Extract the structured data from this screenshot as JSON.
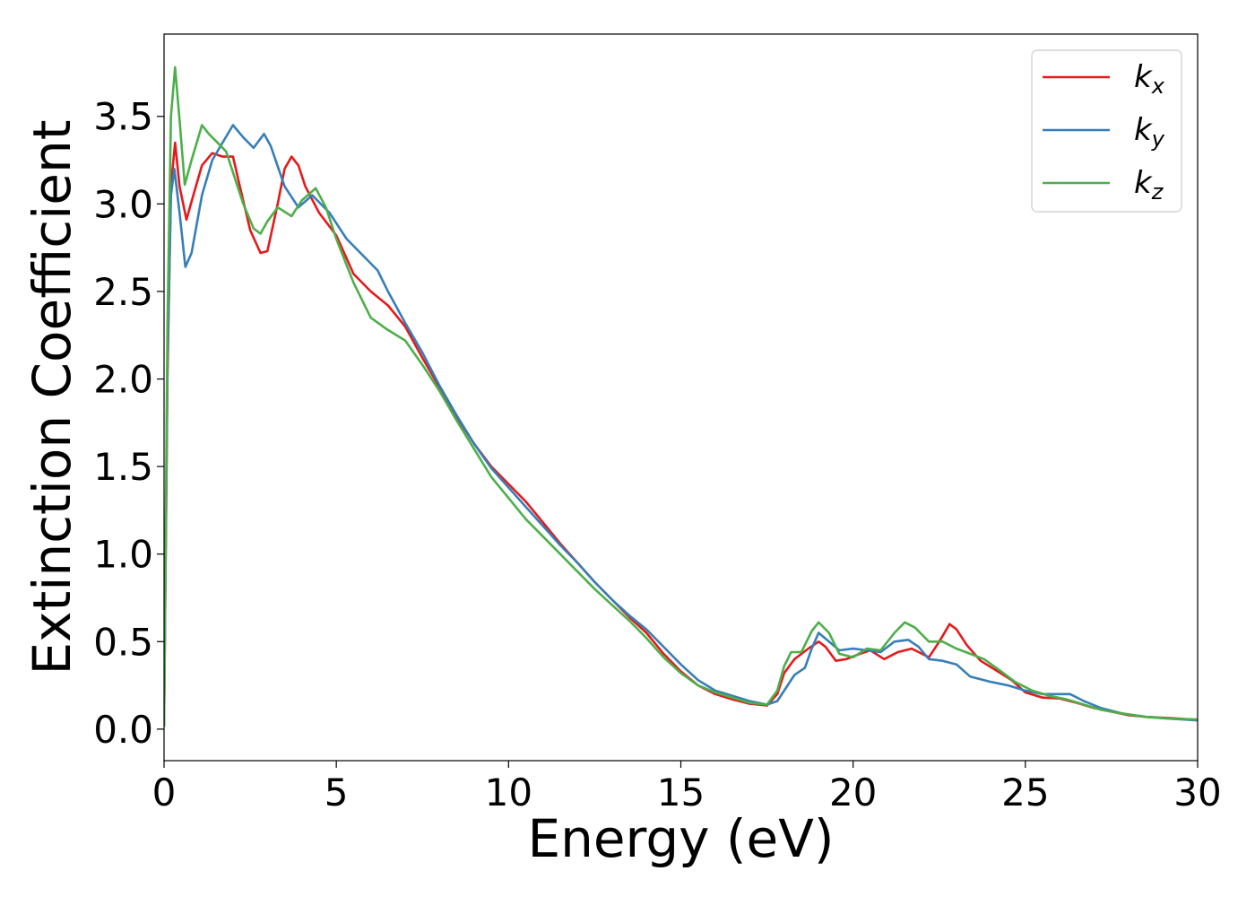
{
  "chart_data": {
    "type": "line",
    "title": "",
    "xlabel": "Energy (eV)",
    "ylabel": "Extinction Coefficient",
    "xlim": [
      0,
      30
    ],
    "ylim": [
      -0.18,
      3.97
    ],
    "xticks": [
      0,
      5,
      10,
      15,
      20,
      25,
      30
    ],
    "xtick_labels": [
      "0",
      "5",
      "10",
      "15",
      "20",
      "25",
      "30"
    ],
    "yticks": [
      0.0,
      0.5,
      1.0,
      1.5,
      2.0,
      2.5,
      3.0,
      3.5
    ],
    "ytick_labels": [
      "0.0",
      "0.5",
      "1.0",
      "1.5",
      "2.0",
      "2.5",
      "3.0",
      "3.5"
    ],
    "grid": false,
    "legend_position": "top-right",
    "series": [
      {
        "name": "kx",
        "legend_main": "k",
        "legend_sub": "x",
        "color": "#e41a1c",
        "points": [
          [
            0,
            0.02
          ],
          [
            0.1,
            2.0
          ],
          [
            0.2,
            3.1
          ],
          [
            0.32,
            3.35
          ],
          [
            0.45,
            3.1
          ],
          [
            0.65,
            2.91
          ],
          [
            0.85,
            3.05
          ],
          [
            1.1,
            3.22
          ],
          [
            1.4,
            3.29
          ],
          [
            1.7,
            3.27
          ],
          [
            2.0,
            3.27
          ],
          [
            2.2,
            3.1
          ],
          [
            2.5,
            2.85
          ],
          [
            2.8,
            2.72
          ],
          [
            3.0,
            2.73
          ],
          [
            3.3,
            3.0
          ],
          [
            3.5,
            3.2
          ],
          [
            3.7,
            3.27
          ],
          [
            3.9,
            3.22
          ],
          [
            4.1,
            3.1
          ],
          [
            4.5,
            2.95
          ],
          [
            5.0,
            2.82
          ],
          [
            5.5,
            2.6
          ],
          [
            6.0,
            2.5
          ],
          [
            6.5,
            2.42
          ],
          [
            7.0,
            2.3
          ],
          [
            7.5,
            2.12
          ],
          [
            8.0,
            1.95
          ],
          [
            8.5,
            1.78
          ],
          [
            9.0,
            1.63
          ],
          [
            9.5,
            1.5
          ],
          [
            10.0,
            1.4
          ],
          [
            10.5,
            1.3
          ],
          [
            11.0,
            1.18
          ],
          [
            11.5,
            1.06
          ],
          [
            12.0,
            0.95
          ],
          [
            12.5,
            0.84
          ],
          [
            13.0,
            0.74
          ],
          [
            13.5,
            0.64
          ],
          [
            14.0,
            0.55
          ],
          [
            14.5,
            0.43
          ],
          [
            15.0,
            0.33
          ],
          [
            15.5,
            0.25
          ],
          [
            16.0,
            0.2
          ],
          [
            16.5,
            0.17
          ],
          [
            17.0,
            0.145
          ],
          [
            17.5,
            0.135
          ],
          [
            17.8,
            0.2
          ],
          [
            18.0,
            0.32
          ],
          [
            18.3,
            0.4
          ],
          [
            18.7,
            0.46
          ],
          [
            19.0,
            0.5
          ],
          [
            19.2,
            0.47
          ],
          [
            19.5,
            0.39
          ],
          [
            19.8,
            0.4
          ],
          [
            20.2,
            0.43
          ],
          [
            20.5,
            0.45
          ],
          [
            20.9,
            0.4
          ],
          [
            21.3,
            0.44
          ],
          [
            21.7,
            0.46
          ],
          [
            22.0,
            0.43
          ],
          [
            22.2,
            0.41
          ],
          [
            22.5,
            0.5
          ],
          [
            22.8,
            0.6
          ],
          [
            23.0,
            0.57
          ],
          [
            23.3,
            0.48
          ],
          [
            23.7,
            0.39
          ],
          [
            24.2,
            0.33
          ],
          [
            24.6,
            0.28
          ],
          [
            25.0,
            0.21
          ],
          [
            25.5,
            0.18
          ],
          [
            26.0,
            0.175
          ],
          [
            26.5,
            0.15
          ],
          [
            27.0,
            0.12
          ],
          [
            27.5,
            0.1
          ],
          [
            28.0,
            0.08
          ],
          [
            28.5,
            0.07
          ],
          [
            29.0,
            0.065
          ],
          [
            29.5,
            0.06
          ],
          [
            30.0,
            0.05
          ]
        ]
      },
      {
        "name": "ky",
        "legend_main": "k",
        "legend_sub": "y",
        "color": "#377eb8",
        "points": [
          [
            0,
            0.02
          ],
          [
            0.1,
            2.1
          ],
          [
            0.2,
            3.05
          ],
          [
            0.3,
            3.2
          ],
          [
            0.45,
            2.95
          ],
          [
            0.62,
            2.64
          ],
          [
            0.8,
            2.72
          ],
          [
            1.1,
            3.05
          ],
          [
            1.4,
            3.25
          ],
          [
            1.7,
            3.35
          ],
          [
            2.0,
            3.45
          ],
          [
            2.3,
            3.38
          ],
          [
            2.6,
            3.32
          ],
          [
            2.9,
            3.4
          ],
          [
            3.1,
            3.33
          ],
          [
            3.5,
            3.1
          ],
          [
            3.9,
            2.98
          ],
          [
            4.3,
            3.05
          ],
          [
            4.8,
            2.95
          ],
          [
            5.3,
            2.8
          ],
          [
            5.8,
            2.7
          ],
          [
            6.2,
            2.62
          ],
          [
            6.5,
            2.5
          ],
          [
            7.0,
            2.32
          ],
          [
            7.5,
            2.15
          ],
          [
            8.0,
            1.96
          ],
          [
            8.5,
            1.79
          ],
          [
            9.0,
            1.63
          ],
          [
            9.5,
            1.49
          ],
          [
            10.0,
            1.38
          ],
          [
            10.5,
            1.27
          ],
          [
            11.0,
            1.16
          ],
          [
            11.5,
            1.05
          ],
          [
            12.0,
            0.95
          ],
          [
            12.5,
            0.84
          ],
          [
            13.0,
            0.74
          ],
          [
            13.5,
            0.65
          ],
          [
            14.0,
            0.57
          ],
          [
            14.5,
            0.47
          ],
          [
            15.0,
            0.37
          ],
          [
            15.5,
            0.28
          ],
          [
            16.0,
            0.22
          ],
          [
            16.5,
            0.19
          ],
          [
            17.0,
            0.16
          ],
          [
            17.5,
            0.14
          ],
          [
            17.8,
            0.16
          ],
          [
            18.1,
            0.25
          ],
          [
            18.3,
            0.31
          ],
          [
            18.6,
            0.35
          ],
          [
            18.8,
            0.46
          ],
          [
            19.0,
            0.55
          ],
          [
            19.3,
            0.5
          ],
          [
            19.6,
            0.45
          ],
          [
            20.0,
            0.46
          ],
          [
            20.4,
            0.45
          ],
          [
            20.8,
            0.44
          ],
          [
            21.2,
            0.5
          ],
          [
            21.6,
            0.51
          ],
          [
            21.9,
            0.47
          ],
          [
            22.2,
            0.4
          ],
          [
            22.6,
            0.39
          ],
          [
            23.0,
            0.37
          ],
          [
            23.4,
            0.3
          ],
          [
            24.0,
            0.27
          ],
          [
            24.5,
            0.25
          ],
          [
            25.0,
            0.22
          ],
          [
            25.5,
            0.2
          ],
          [
            26.0,
            0.2
          ],
          [
            26.3,
            0.2
          ],
          [
            26.7,
            0.16
          ],
          [
            27.2,
            0.12
          ],
          [
            27.8,
            0.09
          ],
          [
            28.5,
            0.07
          ],
          [
            29.2,
            0.06
          ],
          [
            30.0,
            0.05
          ]
        ]
      },
      {
        "name": "kz",
        "legend_main": "k",
        "legend_sub": "z",
        "color": "#4daf4a",
        "points": [
          [
            0,
            0.02
          ],
          [
            0.1,
            2.3
          ],
          [
            0.2,
            3.5
          ],
          [
            0.32,
            3.78
          ],
          [
            0.45,
            3.48
          ],
          [
            0.6,
            3.11
          ],
          [
            0.8,
            3.25
          ],
          [
            1.1,
            3.45
          ],
          [
            1.3,
            3.4
          ],
          [
            1.5,
            3.36
          ],
          [
            1.8,
            3.3
          ],
          [
            2.0,
            3.18
          ],
          [
            2.3,
            3.0
          ],
          [
            2.6,
            2.86
          ],
          [
            2.8,
            2.83
          ],
          [
            3.0,
            2.9
          ],
          [
            3.3,
            2.98
          ],
          [
            3.7,
            2.93
          ],
          [
            4.0,
            3.02
          ],
          [
            4.4,
            3.09
          ],
          [
            4.7,
            2.98
          ],
          [
            5.0,
            2.8
          ],
          [
            5.5,
            2.55
          ],
          [
            6.0,
            2.35
          ],
          [
            6.5,
            2.28
          ],
          [
            7.0,
            2.22
          ],
          [
            7.5,
            2.08
          ],
          [
            8.0,
            1.93
          ],
          [
            8.5,
            1.76
          ],
          [
            9.0,
            1.6
          ],
          [
            9.5,
            1.44
          ],
          [
            10.0,
            1.32
          ],
          [
            10.5,
            1.2
          ],
          [
            11.0,
            1.1
          ],
          [
            11.5,
            1.0
          ],
          [
            12.0,
            0.9
          ],
          [
            12.5,
            0.8
          ],
          [
            13.0,
            0.71
          ],
          [
            13.5,
            0.62
          ],
          [
            14.0,
            0.52
          ],
          [
            14.5,
            0.41
          ],
          [
            15.0,
            0.32
          ],
          [
            15.5,
            0.25
          ],
          [
            16.0,
            0.21
          ],
          [
            16.5,
            0.18
          ],
          [
            17.0,
            0.15
          ],
          [
            17.5,
            0.14
          ],
          [
            17.8,
            0.22
          ],
          [
            18.0,
            0.36
          ],
          [
            18.2,
            0.44
          ],
          [
            18.5,
            0.44
          ],
          [
            18.8,
            0.56
          ],
          [
            19.0,
            0.61
          ],
          [
            19.3,
            0.55
          ],
          [
            19.6,
            0.43
          ],
          [
            20.0,
            0.41
          ],
          [
            20.4,
            0.46
          ],
          [
            20.8,
            0.45
          ],
          [
            21.2,
            0.55
          ],
          [
            21.5,
            0.61
          ],
          [
            21.8,
            0.58
          ],
          [
            22.2,
            0.5
          ],
          [
            22.6,
            0.5
          ],
          [
            23.0,
            0.46
          ],
          [
            23.4,
            0.43
          ],
          [
            23.8,
            0.4
          ],
          [
            24.3,
            0.33
          ],
          [
            24.7,
            0.27
          ],
          [
            25.2,
            0.22
          ],
          [
            25.7,
            0.19
          ],
          [
            26.2,
            0.17
          ],
          [
            26.7,
            0.14
          ],
          [
            27.2,
            0.11
          ],
          [
            27.8,
            0.09
          ],
          [
            28.5,
            0.07
          ],
          [
            29.2,
            0.06
          ],
          [
            30.0,
            0.055
          ]
        ]
      }
    ]
  }
}
